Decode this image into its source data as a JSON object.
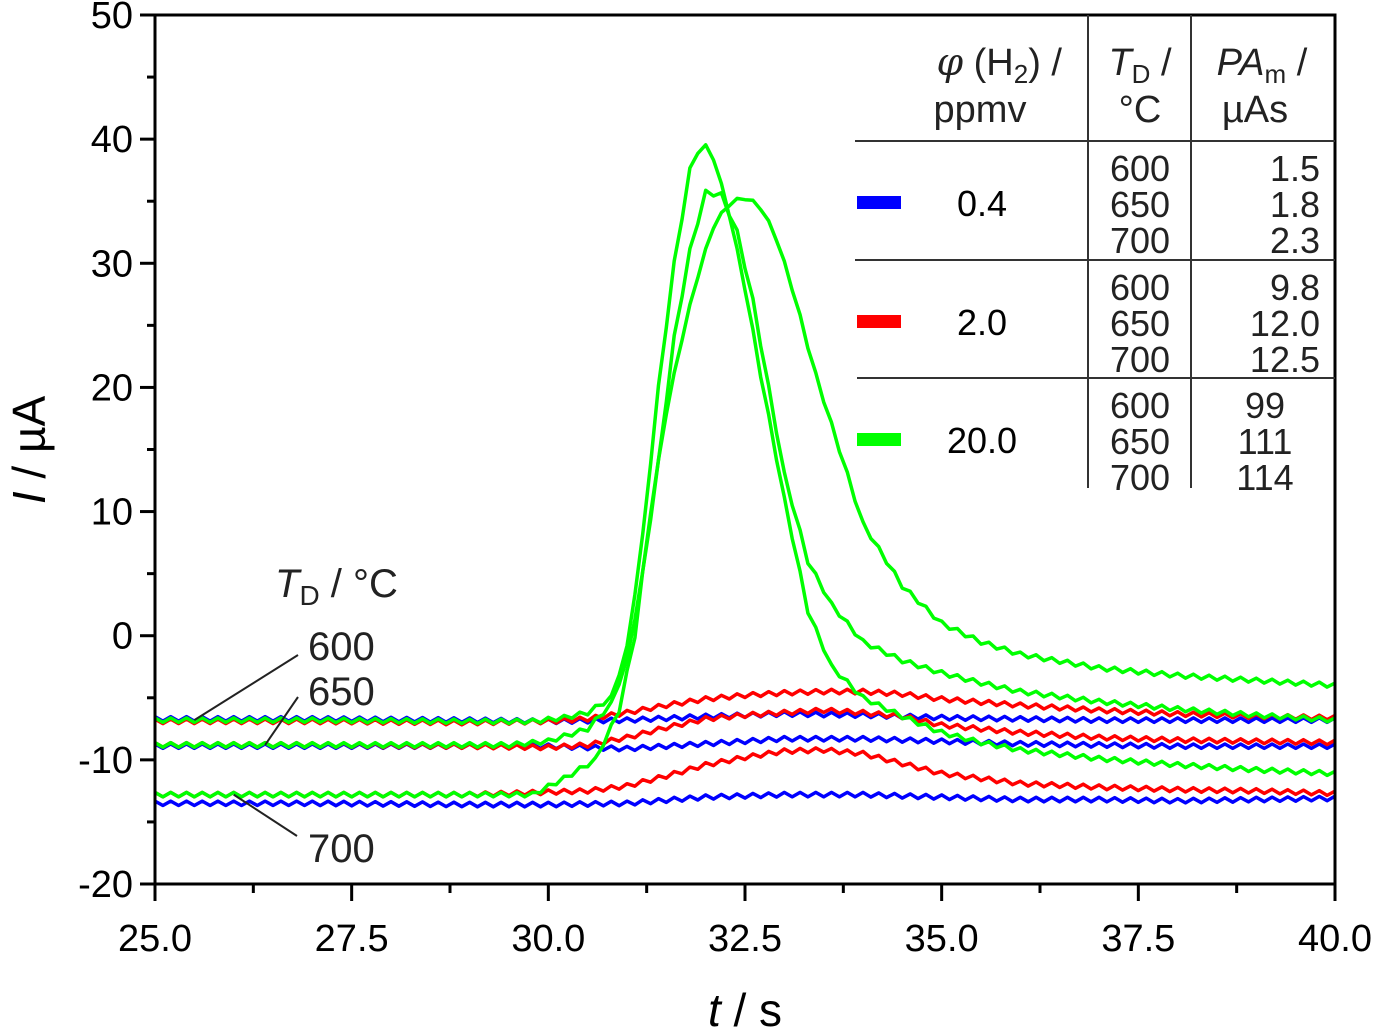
{
  "chart_data": {
    "type": "line",
    "title": "",
    "xlabel": {
      "italic": "t",
      "rest": " / s"
    },
    "ylabel": {
      "italic": "I",
      "rest": " / µA"
    },
    "xlim": [
      25.0,
      40.0
    ],
    "ylim": [
      -20,
      50
    ],
    "x_ticks": [
      "25.0",
      "27.5",
      "30.0",
      "32.5",
      "35.0",
      "37.5",
      "40.0"
    ],
    "x_tick_values": [
      25.0,
      27.5,
      30.0,
      32.5,
      35.0,
      37.5,
      40.0
    ],
    "x_minor_ticks": [
      26.25,
      28.75,
      31.25,
      33.75,
      36.25,
      38.75
    ],
    "y_ticks": [
      "-20",
      "-10",
      "0",
      "10",
      "20",
      "30",
      "40",
      "50"
    ],
    "y_tick_values": [
      -20,
      -10,
      0,
      10,
      20,
      30,
      40,
      50
    ],
    "y_minor_ticks": [
      -15,
      -5,
      5,
      15,
      25,
      35,
      45
    ],
    "grid": false,
    "legend_placement": "top-right (table)",
    "colors": {
      "0.4": "#0000ff",
      "2.0": "#ff0000",
      "20.0": "#00ff00"
    },
    "series": [
      {
        "name": "0.4 ppmv, 600 °C",
        "color": "#0000ff",
        "x": [
          25,
          27,
          29,
          30,
          31,
          32,
          33,
          34,
          35,
          36,
          37,
          38,
          39,
          40
        ],
        "y": [
          -6.7,
          -6.7,
          -6.8,
          -6.9,
          -6.8,
          -6.5,
          -6.3,
          -6.4,
          -6.6,
          -6.7,
          -6.8,
          -6.8,
          -6.8,
          -6.8
        ]
      },
      {
        "name": "0.4 ppmv, 650 °C",
        "color": "#0000ff",
        "x": [
          25,
          27,
          29,
          30,
          31,
          32,
          33,
          34,
          35,
          36,
          37,
          38,
          39,
          40
        ],
        "y": [
          -8.9,
          -8.9,
          -8.9,
          -8.9,
          -9.1,
          -8.7,
          -8.3,
          -8.3,
          -8.5,
          -8.7,
          -8.8,
          -8.9,
          -8.9,
          -8.9
        ]
      },
      {
        "name": "0.4 ppmv, 700 °C",
        "color": "#0000ff",
        "x": [
          25,
          27,
          29,
          30,
          31,
          32,
          33,
          34,
          35,
          36,
          37,
          38,
          39,
          40
        ],
        "y": [
          -13.5,
          -13.5,
          -13.6,
          -13.6,
          -13.5,
          -13.0,
          -12.8,
          -12.8,
          -13.0,
          -13.2,
          -13.2,
          -13.3,
          -13.2,
          -13.1
        ]
      },
      {
        "name": "2.0 ppmv, 600 °C",
        "color": "#ff0000",
        "x": [
          25,
          27,
          29,
          30,
          30.5,
          31,
          31.5,
          32,
          32.5,
          33,
          33.5,
          34,
          34.5,
          35,
          36,
          37,
          38,
          39,
          40
        ],
        "y": [
          -6.9,
          -6.9,
          -7.0,
          -6.9,
          -6.7,
          -6.2,
          -5.6,
          -5.1,
          -4.8,
          -4.6,
          -4.5,
          -4.5,
          -4.7,
          -5.1,
          -5.6,
          -6.0,
          -6.3,
          -6.5,
          -6.6
        ]
      },
      {
        "name": "2.0 ppmv, 650 °C",
        "color": "#ff0000",
        "x": [
          25,
          27,
          29,
          30,
          30.5,
          31,
          31.5,
          32,
          32.5,
          33,
          33.5,
          34,
          34.5,
          35,
          36,
          37,
          38,
          39,
          40
        ],
        "y": [
          -8.8,
          -8.8,
          -8.9,
          -9.0,
          -8.8,
          -8.2,
          -7.4,
          -6.7,
          -6.4,
          -6.2,
          -6.0,
          -6.2,
          -6.5,
          -7.2,
          -7.8,
          -8.2,
          -8.4,
          -8.5,
          -8.6
        ]
      },
      {
        "name": "2.0 ppmv, 700 °C",
        "color": "#ff0000",
        "x": [
          25,
          27,
          29,
          30,
          30.5,
          31,
          31.5,
          32,
          32.5,
          33,
          33.5,
          34,
          34.5,
          35,
          36,
          37,
          38,
          39,
          40
        ],
        "y": [
          -12.8,
          -12.8,
          -12.8,
          -12.6,
          -12.5,
          -12.1,
          -11.3,
          -10.4,
          -9.8,
          -9.3,
          -9.2,
          -9.5,
          -10.3,
          -11.1,
          -11.9,
          -12.2,
          -12.4,
          -12.5,
          -12.7
        ]
      },
      {
        "name": "20.0 ppmv, 600 °C",
        "color": "#00ff00",
        "x": [
          25,
          27,
          29,
          29.8,
          30.2,
          30.5,
          30.8,
          31.0,
          31.2,
          31.4,
          31.6,
          31.8,
          31.95,
          32.1,
          32.3,
          32.5,
          32.7,
          33.0,
          33.3,
          33.6,
          34.0,
          34.5,
          35.0,
          35.5,
          36.0,
          37.0,
          38.0,
          39.0,
          40.0
        ],
        "y": [
          -6.8,
          -6.8,
          -6.9,
          -6.9,
          -6.6,
          -6.2,
          -5.0,
          -1.0,
          8.0,
          20.0,
          30.0,
          37.5,
          39.8,
          38.5,
          34.0,
          28.0,
          21.0,
          11.0,
          2.0,
          -2.5,
          -5.0,
          -6.5,
          -7.8,
          -8.6,
          -9.2,
          -9.9,
          -10.4,
          -10.8,
          -11.1
        ]
      },
      {
        "name": "20.0 ppmv, 650 °C",
        "color": "#00ff00",
        "x": [
          25,
          27,
          29,
          29.5,
          30.0,
          30.5,
          30.8,
          31.0,
          31.2,
          31.4,
          31.6,
          31.8,
          32.0,
          32.2,
          32.4,
          32.6,
          32.8,
          33.0,
          33.3,
          33.6,
          34.0,
          34.5,
          35.0,
          35.5,
          36.0,
          37.0,
          38.0,
          39.0,
          40.0
        ],
        "y": [
          -8.8,
          -8.8,
          -8.8,
          -8.8,
          -8.5,
          -7.5,
          -5.5,
          -2.0,
          5.0,
          14.0,
          24.0,
          31.0,
          35.7,
          35.5,
          32.5,
          27.0,
          20.0,
          13.0,
          6.0,
          2.5,
          -0.5,
          -2.0,
          -3.0,
          -3.8,
          -4.5,
          -5.3,
          -5.9,
          -6.4,
          -6.8
        ]
      },
      {
        "name": "20.0 ppmv, 700 °C",
        "color": "#00ff00",
        "x": [
          25,
          27,
          29,
          29.8,
          30.2,
          30.6,
          30.9,
          31.1,
          31.3,
          31.5,
          31.7,
          31.9,
          32.1,
          32.3,
          32.5,
          32.7,
          32.9,
          33.1,
          33.4,
          33.7,
          34.0,
          34.5,
          35.0,
          35.5,
          36.0,
          37.0,
          38.0,
          39.0,
          40.0
        ],
        "y": [
          -12.8,
          -12.8,
          -12.8,
          -12.8,
          -11.5,
          -10.0,
          -6.0,
          0.0,
          10.0,
          18.0,
          24.0,
          29.0,
          33.0,
          34.8,
          35.3,
          34.5,
          32.0,
          28.0,
          21.0,
          15.0,
          9.0,
          4.0,
          1.0,
          -0.5,
          -1.5,
          -2.6,
          -3.2,
          -3.6,
          -4.0
        ]
      }
    ],
    "legend_table": {
      "headers": {
        "col1_line1_italic": "φ",
        "col1_line1_rest": " (H",
        "col1_line1_sub": "2",
        "col1_line1_end": ") /",
        "col1_line2": "ppmv",
        "col2_line1_italic": "T",
        "col2_line1_sub": "D",
        "col2_line1_end": " /",
        "col2_line2": "°C",
        "col3_line1_italic": "PA",
        "col3_line1_sub": "m",
        "col3_line1_end": " /",
        "col3_line2": "µAs"
      },
      "groups": [
        {
          "concentration": "0.4",
          "color": "#0000ff",
          "temps": [
            "600",
            "650",
            "700"
          ],
          "pa": [
            "1.5",
            "1.8",
            "2.3"
          ]
        },
        {
          "concentration": "2.0",
          "color": "#ff0000",
          "temps": [
            "600",
            "650",
            "700"
          ],
          "pa": [
            "9.8",
            "12.0",
            "12.5"
          ]
        },
        {
          "concentration": "20.0",
          "color": "#00ff00",
          "temps": [
            "600",
            "650",
            "700"
          ],
          "pa": [
            "99",
            "111",
            "114"
          ]
        }
      ]
    },
    "annotations": {
      "title_italic": "T",
      "title_sub": "D",
      "title_rest": " / °C",
      "labels": [
        {
          "text": "600",
          "points_to": {
            "t": 25.5,
            "I": -6.8
          }
        },
        {
          "text": "650",
          "points_to": {
            "t": 26.4,
            "I": -8.8
          }
        },
        {
          "text": "700",
          "points_to": {
            "t": 26.0,
            "I": -12.8
          }
        }
      ]
    }
  }
}
